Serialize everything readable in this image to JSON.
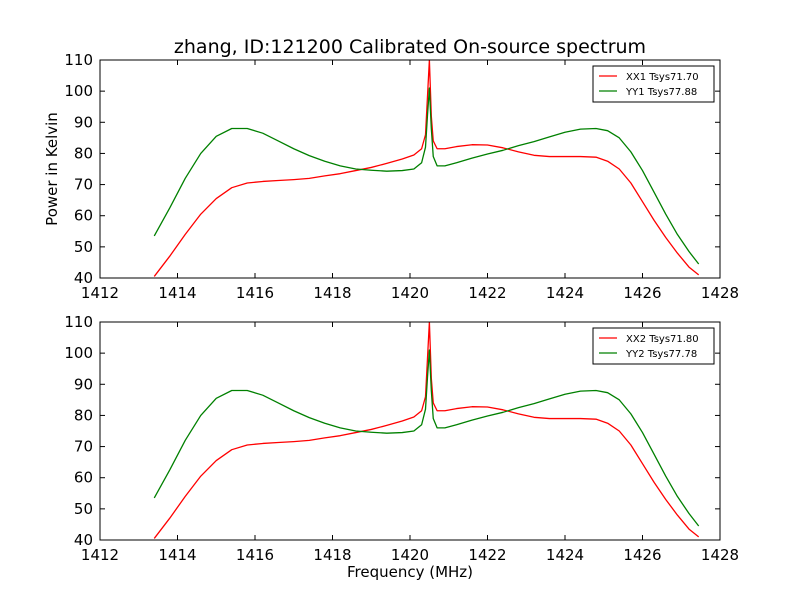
{
  "figure": {
    "title": "zhang, ID:121200 Calibrated On-source spectrum",
    "xlabel": "Frequency (MHz)",
    "ylabel": "Power in Kelvin"
  },
  "chart_data": [
    {
      "type": "line",
      "title": "zhang, ID:121200 Calibrated On-source spectrum",
      "xlabel": "",
      "ylabel": "Power in Kelvin",
      "xlim": [
        1412,
        1428
      ],
      "ylim": [
        40,
        110
      ],
      "xticks": [
        1412,
        1414,
        1416,
        1418,
        1420,
        1422,
        1424,
        1426,
        1428
      ],
      "yticks": [
        40,
        50,
        60,
        70,
        80,
        90,
        100,
        110
      ],
      "legend_position": "top-right",
      "grid": false,
      "series": [
        {
          "name": "XX1 Tsys71.70",
          "color": "#ff0000",
          "x": [
            1413.4,
            1413.8,
            1414.2,
            1414.6,
            1415.0,
            1415.4,
            1415.8,
            1416.2,
            1416.6,
            1417.0,
            1417.4,
            1417.8,
            1418.2,
            1418.6,
            1419.0,
            1419.4,
            1419.8,
            1420.1,
            1420.3,
            1420.4,
            1420.45,
            1420.5,
            1420.55,
            1420.6,
            1420.7,
            1420.9,
            1421.2,
            1421.6,
            1422.0,
            1422.4,
            1422.8,
            1423.2,
            1423.6,
            1424.0,
            1424.4,
            1424.8,
            1425.1,
            1425.4,
            1425.7,
            1426.0,
            1426.3,
            1426.6,
            1426.9,
            1427.2,
            1427.45
          ],
          "y": [
            40.5,
            47.0,
            54.0,
            60.5,
            65.5,
            69.0,
            70.5,
            71.0,
            71.3,
            71.6,
            72.0,
            72.8,
            73.5,
            74.5,
            75.5,
            76.8,
            78.2,
            79.5,
            81.5,
            86.0,
            98.0,
            110.0,
            92.0,
            84.0,
            81.5,
            81.5,
            82.2,
            82.8,
            82.7,
            81.8,
            80.5,
            79.4,
            79.0,
            79.0,
            79.0,
            78.8,
            77.5,
            75.0,
            70.5,
            64.5,
            58.5,
            53.0,
            48.0,
            43.5,
            41.0
          ]
        },
        {
          "name": "YY1 Tsys77.88",
          "color": "#008000",
          "x": [
            1413.4,
            1413.8,
            1414.2,
            1414.6,
            1415.0,
            1415.4,
            1415.8,
            1416.2,
            1416.6,
            1417.0,
            1417.4,
            1417.8,
            1418.2,
            1418.6,
            1419.0,
            1419.4,
            1419.8,
            1420.1,
            1420.3,
            1420.4,
            1420.45,
            1420.5,
            1420.55,
            1420.6,
            1420.7,
            1420.9,
            1421.2,
            1421.6,
            1422.0,
            1422.4,
            1422.8,
            1423.2,
            1423.6,
            1424.0,
            1424.4,
            1424.8,
            1425.1,
            1425.4,
            1425.7,
            1426.0,
            1426.3,
            1426.6,
            1426.9,
            1427.2,
            1427.45
          ],
          "y": [
            53.5,
            62.5,
            72.0,
            80.0,
            85.5,
            88.0,
            88.0,
            86.5,
            84.0,
            81.5,
            79.3,
            77.5,
            76.0,
            75.0,
            74.6,
            74.3,
            74.5,
            75.0,
            77.0,
            82.0,
            92.0,
            101.0,
            88.0,
            79.0,
            76.0,
            76.0,
            77.0,
            78.5,
            79.8,
            81.0,
            82.5,
            83.8,
            85.3,
            86.8,
            87.8,
            88.0,
            87.3,
            85.0,
            80.5,
            74.5,
            67.5,
            60.5,
            54.0,
            48.5,
            44.5
          ]
        }
      ]
    },
    {
      "type": "line",
      "title": "",
      "xlabel": "Frequency (MHz)",
      "ylabel": "",
      "xlim": [
        1412,
        1428
      ],
      "ylim": [
        40,
        110
      ],
      "xticks": [
        1412,
        1414,
        1416,
        1418,
        1420,
        1422,
        1424,
        1426,
        1428
      ],
      "yticks": [
        40,
        50,
        60,
        70,
        80,
        90,
        100,
        110
      ],
      "legend_position": "top-right",
      "grid": false,
      "series": [
        {
          "name": "XX2 Tsys71.80",
          "color": "#ff0000",
          "x": [
            1413.4,
            1413.8,
            1414.2,
            1414.6,
            1415.0,
            1415.4,
            1415.8,
            1416.2,
            1416.6,
            1417.0,
            1417.4,
            1417.8,
            1418.2,
            1418.6,
            1419.0,
            1419.4,
            1419.8,
            1420.1,
            1420.3,
            1420.4,
            1420.45,
            1420.5,
            1420.55,
            1420.6,
            1420.7,
            1420.9,
            1421.2,
            1421.6,
            1422.0,
            1422.4,
            1422.8,
            1423.2,
            1423.6,
            1424.0,
            1424.4,
            1424.8,
            1425.1,
            1425.4,
            1425.7,
            1426.0,
            1426.3,
            1426.6,
            1426.9,
            1427.2,
            1427.45
          ],
          "y": [
            40.5,
            47.0,
            54.0,
            60.5,
            65.5,
            69.0,
            70.5,
            71.0,
            71.3,
            71.6,
            72.0,
            72.8,
            73.5,
            74.5,
            75.5,
            76.8,
            78.2,
            79.5,
            81.5,
            86.0,
            98.0,
            110.0,
            92.0,
            84.0,
            81.5,
            81.5,
            82.2,
            82.8,
            82.7,
            81.8,
            80.5,
            79.4,
            79.0,
            79.0,
            79.0,
            78.8,
            77.5,
            75.0,
            70.5,
            64.5,
            58.5,
            53.0,
            48.0,
            43.5,
            41.0
          ]
        },
        {
          "name": "YY2 Tsys77.78",
          "color": "#008000",
          "x": [
            1413.4,
            1413.8,
            1414.2,
            1414.6,
            1415.0,
            1415.4,
            1415.8,
            1416.2,
            1416.6,
            1417.0,
            1417.4,
            1417.8,
            1418.2,
            1418.6,
            1419.0,
            1419.4,
            1419.8,
            1420.1,
            1420.3,
            1420.4,
            1420.45,
            1420.5,
            1420.55,
            1420.6,
            1420.7,
            1420.9,
            1421.2,
            1421.6,
            1422.0,
            1422.4,
            1422.8,
            1423.2,
            1423.6,
            1424.0,
            1424.4,
            1424.8,
            1425.1,
            1425.4,
            1425.7,
            1426.0,
            1426.3,
            1426.6,
            1426.9,
            1427.2,
            1427.45
          ],
          "y": [
            53.5,
            62.5,
            72.0,
            80.0,
            85.5,
            88.0,
            88.0,
            86.5,
            84.0,
            81.5,
            79.3,
            77.5,
            76.0,
            75.0,
            74.6,
            74.3,
            74.5,
            75.0,
            77.0,
            82.0,
            92.0,
            101.0,
            88.0,
            79.0,
            76.0,
            76.0,
            77.0,
            78.5,
            79.8,
            81.0,
            82.5,
            83.8,
            85.3,
            86.8,
            87.8,
            88.0,
            87.3,
            85.0,
            80.5,
            74.5,
            67.5,
            60.5,
            54.0,
            48.5,
            44.5
          ]
        }
      ]
    }
  ]
}
